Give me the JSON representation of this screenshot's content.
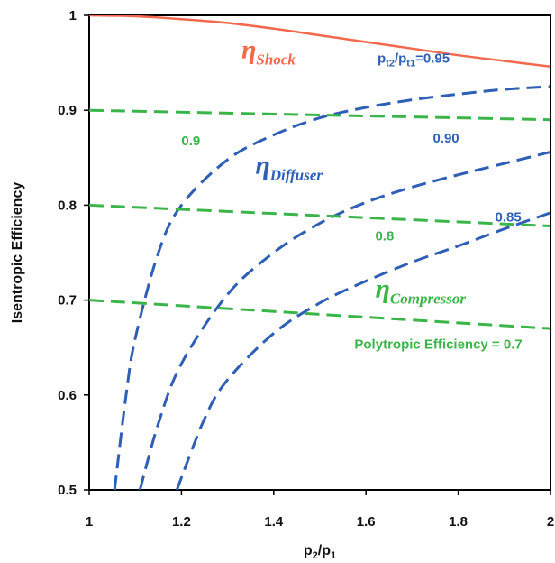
{
  "chart_data": {
    "type": "line",
    "title": "",
    "xlabel": "p2/p1",
    "ylabel": "Isentropic Efficiency",
    "xlim": [
      1,
      2
    ],
    "ylim": [
      0.5,
      1
    ],
    "xticks": [
      "1",
      "1.2",
      "1.4",
      "1.6",
      "1.8",
      "2"
    ],
    "yticks": [
      "0.5",
      "0.6",
      "0.7",
      "0.8",
      "0.9",
      "1"
    ],
    "grid": false,
    "colors": {
      "shock": "#f4684d",
      "diffuser": "#2f5fb5",
      "compressor": "#3bb54a"
    },
    "series": [
      {
        "group": "shock",
        "style": "solid",
        "x": [
          1.0,
          1.1,
          1.2,
          1.3,
          1.4,
          1.5,
          1.6,
          1.7,
          1.8,
          1.9,
          2.0
        ],
        "y": [
          1.0,
          0.999,
          0.996,
          0.992,
          0.986,
          0.979,
          0.972,
          0.965,
          0.958,
          0.952,
          0.946
        ]
      },
      {
        "group": "diffuser",
        "style": "dashed",
        "name": "0.95",
        "x": [
          1.055,
          1.08,
          1.1,
          1.15,
          1.2,
          1.3,
          1.4,
          1.5,
          1.6,
          1.7,
          1.8,
          1.9,
          2.0
        ],
        "y": [
          0.5,
          0.6,
          0.66,
          0.75,
          0.8,
          0.848,
          0.874,
          0.892,
          0.903,
          0.911,
          0.917,
          0.922,
          0.925
        ]
      },
      {
        "group": "diffuser",
        "style": "dashed",
        "name": "0.90",
        "x": [
          1.11,
          1.15,
          1.2,
          1.3,
          1.4,
          1.5,
          1.6,
          1.7,
          1.8,
          1.9,
          2.0
        ],
        "y": [
          0.5,
          0.57,
          0.633,
          0.706,
          0.75,
          0.781,
          0.803,
          0.819,
          0.832,
          0.844,
          0.856
        ]
      },
      {
        "group": "diffuser",
        "style": "dashed",
        "name": "0.85",
        "x": [
          1.19,
          1.25,
          1.3,
          1.4,
          1.5,
          1.6,
          1.7,
          1.8,
          1.9,
          2.0
        ],
        "y": [
          0.5,
          0.575,
          0.616,
          0.665,
          0.697,
          0.72,
          0.74,
          0.757,
          0.775,
          0.792
        ]
      },
      {
        "group": "compressor",
        "style": "dashed",
        "name": "0.9",
        "x": [
          1.0,
          1.5,
          2.0
        ],
        "y": [
          0.9,
          0.895,
          0.89
        ]
      },
      {
        "group": "compressor",
        "style": "dashed",
        "name": "0.8",
        "x": [
          1.0,
          1.5,
          2.0
        ],
        "y": [
          0.8,
          0.789,
          0.778
        ]
      },
      {
        "group": "compressor",
        "style": "dashed",
        "name": "0.7",
        "x": [
          1.0,
          1.5,
          2.0
        ],
        "y": [
          0.7,
          0.685,
          0.67
        ]
      }
    ],
    "annotations": [
      {
        "id": "eta-shock",
        "kind": "eta",
        "color": "shock",
        "main": "η",
        "sub": "Shock",
        "x": 1.33,
        "y": 0.955
      },
      {
        "id": "eta-diffuser",
        "kind": "eta",
        "color": "diffuser",
        "main": "η",
        "sub": "Diffuser",
        "x": 1.36,
        "y": 0.833
      },
      {
        "id": "eta-compressor",
        "kind": "eta",
        "color": "compressor",
        "main": "η",
        "sub": "Compressor",
        "x": 1.62,
        "y": 0.703
      },
      {
        "id": "label-pratio-095",
        "kind": "pratio",
        "color": "diffuser",
        "text": "=0.95",
        "x": 1.625,
        "y": 0.95
      },
      {
        "id": "label-090",
        "kind": "text",
        "color": "diffuser",
        "text": "0.90",
        "x": 1.745,
        "y": 0.866
      },
      {
        "id": "label-085",
        "kind": "text",
        "color": "diffuser",
        "text": "0.85",
        "x": 1.88,
        "y": 0.783
      },
      {
        "id": "label-09",
        "kind": "text",
        "color": "compressor",
        "text": "0.9",
        "x": 1.2,
        "y": 0.863
      },
      {
        "id": "label-08",
        "kind": "text",
        "color": "compressor",
        "text": "0.8",
        "x": 1.62,
        "y": 0.763
      },
      {
        "id": "label-poly",
        "kind": "text",
        "color": "compressor",
        "text": "Polytropic Efficiency = 0.7",
        "x": 1.575,
        "y": 0.649
      }
    ]
  }
}
